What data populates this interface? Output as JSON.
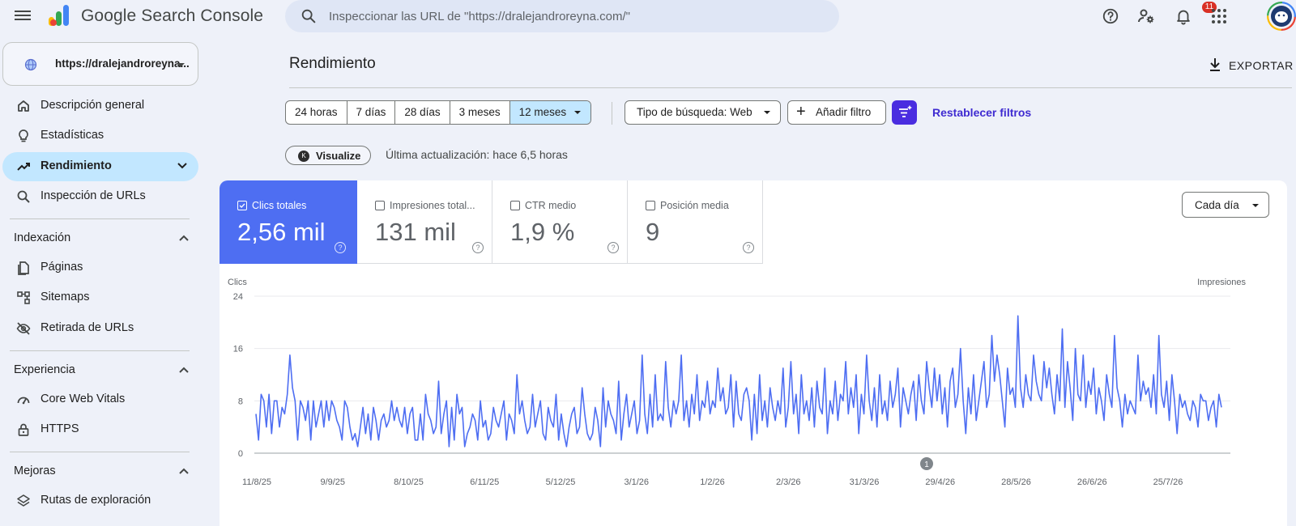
{
  "app": {
    "title": "Google Search Console",
    "search_placeholder": "Inspeccionar las URL de \"https://dralejandroreyna.com/\"",
    "notification_count": "11",
    "icons": [
      "menu-icon",
      "help-icon",
      "user-settings-icon",
      "bell-icon",
      "apps-grid-icon",
      "avatar"
    ]
  },
  "sidebar": {
    "property_label": "https://dralejandroreyna...",
    "items": [
      {
        "label": "Descripción general",
        "icon": "home-icon"
      },
      {
        "label": "Estadísticas",
        "icon": "lightbulb-icon"
      },
      {
        "label": "Rendimiento",
        "icon": "trending-up-icon"
      },
      {
        "label": "Inspección de URLs",
        "icon": "search-icon"
      }
    ],
    "sections": [
      {
        "label": "Indexación",
        "items": [
          {
            "label": "Páginas",
            "icon": "pages-icon"
          },
          {
            "label": "Sitemaps",
            "icon": "sitemap-icon"
          },
          {
            "label": "Retirada de URLs",
            "icon": "eye-off-icon"
          }
        ]
      },
      {
        "label": "Experiencia",
        "items": [
          {
            "label": "Core Web Vitals",
            "icon": "speed-icon"
          },
          {
            "label": "HTTPS",
            "icon": "lock-icon"
          }
        ]
      },
      {
        "label": "Mejoras",
        "items": [
          {
            "label": "Rutas de exploración",
            "icon": "layers-icon"
          }
        ]
      }
    ]
  },
  "main": {
    "page_title": "Rendimiento",
    "export_label": "EXPORTAR",
    "ranges": [
      "24 horas",
      "7 días",
      "28 días",
      "3 meses",
      "12 meses"
    ],
    "selected_range": "12 meses",
    "search_type": "Tipo de búsqueda: Web",
    "add_filter": "Añadir filtro",
    "reset_filters": "Restablecer filtros",
    "visualize_label": "Visualize",
    "last_update": "Última actualización: hace 6,5 horas"
  },
  "metrics": [
    {
      "label": "Clics totales",
      "value": "2,56 mil",
      "checked": true
    },
    {
      "label": "Impresiones total...",
      "value": "131 mil",
      "checked": false
    },
    {
      "label": "CTR medio",
      "value": "1,9 %",
      "checked": false
    },
    {
      "label": "Posición media",
      "value": "9",
      "checked": false
    }
  ],
  "granularity": "Cada día",
  "annotation_marker": "1",
  "colors": {
    "accent": "#4e6ef2",
    "selected_chip": "#c2e7ff",
    "link": "#3f2bd1",
    "filter_fab": "#4a2de0"
  },
  "chart_data": {
    "type": "line",
    "ylabel": "Clics",
    "y2label": "Impresiones",
    "ylim": [
      0,
      24
    ],
    "yticks": [
      0,
      8,
      16,
      24
    ],
    "xticks": [
      "11/8/25",
      "9/9/25",
      "8/10/25",
      "6/11/25",
      "5/12/25",
      "3/1/26",
      "1/2/26",
      "2/3/26",
      "31/3/26",
      "29/4/26",
      "28/5/26",
      "26/6/26",
      "25/7/26"
    ],
    "series": [
      {
        "name": "Clics totales",
        "color": "#4e6ef2",
        "values": [
          6,
          2,
          9,
          8,
          4,
          9,
          3,
          8,
          8,
          4,
          7,
          6,
          9,
          15,
          10,
          8,
          2,
          8,
          7,
          5,
          8,
          2,
          8,
          4,
          6,
          8,
          4,
          8,
          5,
          8,
          7,
          5,
          4,
          2,
          8,
          7,
          4,
          2,
          3,
          1,
          4,
          7,
          3,
          6,
          2,
          7,
          5,
          2,
          5,
          6,
          4,
          5,
          8,
          5,
          7,
          5,
          4,
          7,
          3,
          6,
          7,
          2,
          2,
          6,
          2,
          9,
          6,
          5,
          3,
          4,
          11,
          3,
          6,
          8,
          1,
          7,
          2,
          9,
          6,
          7,
          1,
          3,
          4,
          6,
          5,
          2,
          8,
          4,
          5,
          2,
          3,
          7,
          5,
          4,
          6,
          8,
          2,
          6,
          5,
          3,
          12,
          6,
          8,
          5,
          3,
          4,
          9,
          4,
          6,
          8,
          3,
          2,
          7,
          5,
          4,
          9,
          2,
          6,
          3,
          1,
          4,
          6,
          7,
          3,
          4,
          10,
          6,
          3,
          2,
          3,
          7,
          5,
          1,
          10,
          4,
          8,
          6,
          5,
          3,
          11,
          2,
          6,
          9,
          4,
          6,
          8,
          3,
          5,
          15,
          6,
          3,
          9,
          4,
          12,
          5,
          6,
          5,
          14,
          7,
          4,
          8,
          6,
          8,
          15,
          5,
          8,
          4,
          9,
          6,
          12,
          5,
          8,
          7,
          11,
          6,
          8,
          7,
          13,
          8,
          10,
          6,
          7,
          12,
          4,
          11,
          6,
          5,
          9,
          10,
          8,
          2,
          9,
          3,
          12,
          5,
          8,
          4,
          10,
          7,
          5,
          8,
          6,
          13,
          4,
          7,
          14,
          6,
          9,
          3,
          12,
          6,
          8,
          5,
          10,
          4,
          11,
          7,
          6,
          13,
          3,
          8,
          6,
          11,
          5,
          9,
          8,
          14,
          6,
          10,
          7,
          12,
          3,
          9,
          6,
          15,
          8,
          5,
          10,
          4,
          12,
          6,
          8,
          5,
          11,
          7,
          9,
          13,
          4,
          10,
          8,
          6,
          9,
          11,
          5,
          12,
          8,
          6,
          14,
          10,
          7,
          13,
          8,
          12,
          6,
          10,
          4,
          11,
          13,
          7,
          9,
          16,
          8,
          3,
          10,
          6,
          12,
          5,
          8,
          11,
          14,
          7,
          9,
          18,
          11,
          15,
          12,
          8,
          4,
          13,
          9,
          10,
          7,
          21,
          10,
          7,
          12,
          9,
          8,
          15,
          11,
          9,
          8,
          14,
          10,
          13,
          9,
          6,
          12,
          8,
          19,
          7,
          14,
          10,
          5,
          16,
          9,
          8,
          15,
          7,
          11,
          9,
          13,
          6,
          10,
          8,
          5,
          12,
          9,
          7,
          18,
          10,
          8,
          4,
          9,
          6,
          8,
          7,
          6,
          15,
          8,
          11,
          9,
          10,
          7,
          12,
          6,
          18,
          9,
          7,
          11,
          5,
          12,
          8,
          3,
          9,
          7,
          8,
          6,
          5,
          8,
          7,
          4,
          9,
          8,
          8,
          5,
          7,
          8,
          4,
          9,
          7
        ]
      }
    ]
  }
}
